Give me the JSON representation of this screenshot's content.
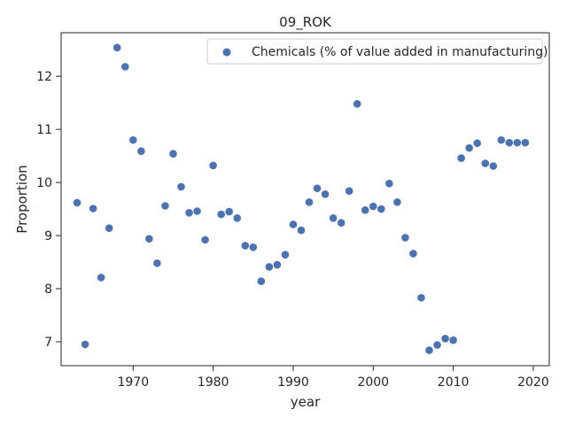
{
  "chart_data": {
    "type": "scatter",
    "title": "09_ROK",
    "xlabel": "year",
    "ylabel": "Proportion",
    "xlim": [
      1961,
      2022
    ],
    "ylim": [
      6.55,
      12.82
    ],
    "xticks": [
      1970,
      1980,
      1990,
      2000,
      2010,
      2020
    ],
    "yticks": [
      7,
      8,
      9,
      10,
      11,
      12
    ],
    "grid": false,
    "legend_position": "top-right",
    "series": [
      {
        "name": "Chemicals (% of value added in manufacturing)",
        "color": "#4c72b0",
        "x": [
          1963,
          1964,
          1965,
          1966,
          1967,
          1968,
          1969,
          1970,
          1971,
          1972,
          1973,
          1974,
          1975,
          1976,
          1977,
          1978,
          1979,
          1980,
          1981,
          1982,
          1983,
          1984,
          1985,
          1986,
          1987,
          1988,
          1989,
          1990,
          1991,
          1992,
          1993,
          1994,
          1995,
          1996,
          1997,
          1998,
          1999,
          2000,
          2001,
          2002,
          2003,
          2004,
          2005,
          2006,
          2007,
          2008,
          2009,
          2010,
          2011,
          2012,
          2013,
          2014,
          2015,
          2016,
          2017,
          2018,
          2019
        ],
        "y": [
          9.62,
          6.95,
          9.51,
          8.21,
          9.14,
          12.54,
          12.18,
          10.8,
          10.59,
          8.94,
          8.48,
          9.56,
          10.54,
          9.92,
          9.43,
          9.46,
          8.92,
          10.32,
          9.4,
          9.45,
          9.33,
          8.81,
          8.78,
          8.14,
          8.41,
          8.45,
          8.64,
          9.21,
          9.1,
          9.63,
          9.89,
          9.78,
          9.33,
          9.24,
          9.84,
          11.48,
          9.48,
          9.55,
          9.5,
          9.98,
          9.63,
          8.96,
          8.66,
          7.83,
          6.84,
          6.94,
          7.06,
          7.03,
          10.46,
          10.65,
          10.74,
          10.36,
          10.31,
          10.8,
          10.75,
          10.75,
          10.75
        ]
      }
    ]
  }
}
